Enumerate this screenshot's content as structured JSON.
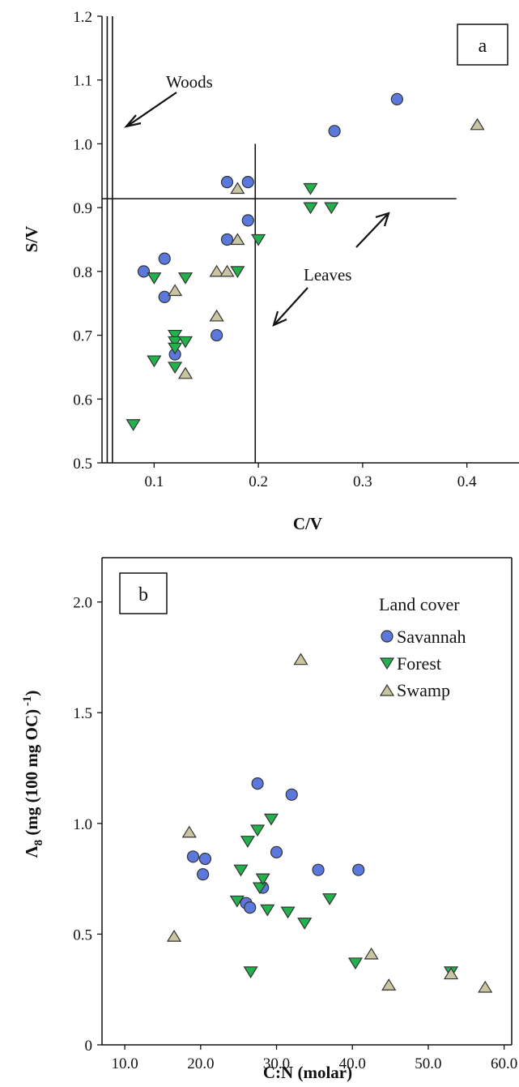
{
  "chart_data": [
    {
      "type": "scatter",
      "panel_label": "a",
      "xlabel": "C/V",
      "ylabel": "S/V",
      "xlim": [
        0.05,
        0.45
      ],
      "ylim": [
        0.5,
        1.2
      ],
      "xticks": [
        0.1,
        0.2,
        0.3,
        0.4
      ],
      "xtick_labels": [
        "0.1",
        "0.2",
        "0.3",
        "0.4"
      ],
      "yticks": [
        0.5,
        0.6,
        0.7,
        0.8,
        0.9,
        1.0,
        1.1,
        1.2
      ],
      "ytick_labels": [
        "0.5",
        "0.6",
        "0.7",
        "0.8",
        "0.9",
        "1.0",
        "1.1",
        "1.2"
      ],
      "annotations": [
        {
          "text": "Woods",
          "region": "woods"
        },
        {
          "text": "Leaves",
          "region": "leaves"
        }
      ],
      "reference_lines": {
        "woods_x": [
          0.055,
          0.06
        ],
        "leaves_x": 0.197,
        "leaves_y": 0.914,
        "leaves_h_extent": [
          0.05,
          0.39
        ],
        "leaves_v_extent": [
          0.5,
          1.0
        ]
      },
      "series": [
        {
          "name": "Savannah",
          "marker": "circle",
          "color": "#5b79dc",
          "x": [
            0.09,
            0.11,
            0.11,
            0.12,
            0.16,
            0.17,
            0.17,
            0.19,
            0.19,
            0.273,
            0.333
          ],
          "y": [
            0.8,
            0.82,
            0.76,
            0.67,
            0.7,
            0.85,
            0.94,
            0.88,
            0.94,
            1.02,
            1.07
          ]
        },
        {
          "name": "Forest",
          "marker": "triangle-down",
          "color": "#22b14c",
          "x": [
            0.08,
            0.1,
            0.1,
            0.12,
            0.12,
            0.12,
            0.12,
            0.13,
            0.13,
            0.18,
            0.2,
            0.25,
            0.25,
            0.27
          ],
          "y": [
            0.56,
            0.79,
            0.66,
            0.7,
            0.69,
            0.68,
            0.65,
            0.79,
            0.69,
            0.8,
            0.85,
            0.93,
            0.9,
            0.9
          ]
        },
        {
          "name": "Swamp",
          "marker": "triangle-up",
          "color": "#c8c5a0",
          "x": [
            0.12,
            0.13,
            0.16,
            0.16,
            0.17,
            0.18,
            0.18,
            0.41
          ],
          "y": [
            0.77,
            0.64,
            0.8,
            0.73,
            0.8,
            0.85,
            0.93,
            1.03
          ]
        }
      ]
    },
    {
      "type": "scatter",
      "panel_label": "b",
      "xlabel": "C:N (molar)",
      "ylabel": "Λ8 (mg (100 mg OC) -1)",
      "ylabel_parts": {
        "symbol": "Λ",
        "sub": "8",
        "rest": " (mg (100 mg OC)",
        "sup": " -1",
        "close": ")"
      },
      "xlim": [
        7,
        61
      ],
      "ylim": [
        0,
        2.2
      ],
      "xticks": [
        10,
        20,
        30,
        40,
        50,
        60
      ],
      "xtick_labels": [
        "10.0",
        "20.0",
        "30.0",
        "40.0",
        "50.0",
        "60.0"
      ],
      "yticks": [
        0,
        0.5,
        1.0,
        1.5,
        2.0
      ],
      "ytick_labels": [
        "0",
        "0.5",
        "1.0",
        "1.5",
        "2.0"
      ],
      "legend": {
        "title": "Land cover",
        "position": "top-right",
        "entries": [
          "Savannah",
          "Forest",
          "Swamp"
        ]
      },
      "series": [
        {
          "name": "Savannah",
          "marker": "circle",
          "color": "#5b79dc",
          "x": [
            19.0,
            20.3,
            20.6,
            26.0,
            26.5,
            27.5,
            28.2,
            30.0,
            32.0,
            35.5,
            40.8
          ],
          "y": [
            0.85,
            0.77,
            0.84,
            0.64,
            0.62,
            1.18,
            0.71,
            0.87,
            1.13,
            0.79,
            0.79
          ]
        },
        {
          "name": "Forest",
          "marker": "triangle-down",
          "color": "#22b14c",
          "x": [
            24.8,
            25.3,
            26.2,
            26.6,
            27.5,
            27.8,
            28.2,
            28.8,
            29.3,
            31.5,
            33.7,
            37.0,
            40.4,
            53.0
          ],
          "y": [
            0.65,
            0.79,
            0.92,
            0.33,
            0.97,
            0.71,
            0.75,
            0.61,
            1.02,
            0.6,
            0.55,
            0.66,
            0.37,
            0.33
          ]
        },
        {
          "name": "Swamp",
          "marker": "triangle-up",
          "color": "#c8c5a0",
          "x": [
            16.5,
            18.5,
            33.2,
            42.5,
            44.8,
            53.0,
            57.5
          ],
          "y": [
            0.49,
            0.96,
            1.74,
            0.41,
            0.27,
            0.32,
            0.26
          ]
        }
      ]
    }
  ]
}
